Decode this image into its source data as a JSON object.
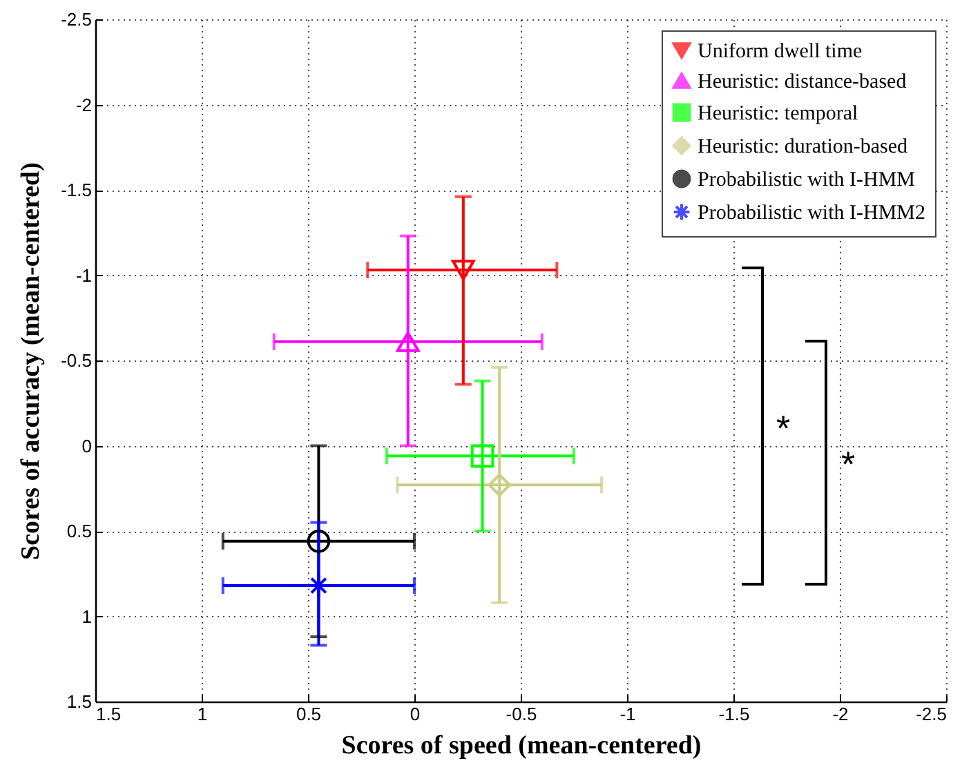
{
  "chart_data": {
    "type": "scatter",
    "xlabel": "Scores of speed (mean-centered)",
    "ylabel": "Scores of accuracy (mean-centered)",
    "xlim": [
      1.5,
      -2.5
    ],
    "xticks": [
      1.5,
      1,
      0.5,
      0,
      -0.5,
      -1,
      -1.5,
      -2,
      -2.5
    ],
    "ylim": [
      1.5,
      -2.5
    ],
    "yticks": [
      -2.5,
      -2,
      -1.5,
      -1,
      -0.5,
      0,
      0.5,
      1,
      1.5
    ],
    "grid": true,
    "legend": "top right",
    "series": [
      {
        "name": "Uniform dwell time",
        "color": "#ff0000",
        "marker": "triangle-down",
        "x": [
          -0.23
        ],
        "values": [
          -1.03
        ],
        "xerrors": [
          [
            -0.67,
            0.22
          ]
        ],
        "errors": [
          [
            -1.46,
            -0.36
          ]
        ]
      },
      {
        "name": "Heuristic: distance-based",
        "color": "#ff00ff",
        "marker": "triangle",
        "x": [
          0.03
        ],
        "values": [
          -0.61
        ],
        "xerrors": [
          [
            -0.6,
            0.66
          ]
        ],
        "errors": [
          [
            -1.23,
            0.0
          ]
        ]
      },
      {
        "name": "Heuristic: temporal",
        "color": "#00ff00",
        "marker": "square",
        "x": [
          -0.32
        ],
        "values": [
          0.06
        ],
        "xerrors": [
          [
            -0.75,
            0.13
          ]
        ],
        "errors": [
          [
            -0.38,
            0.5
          ]
        ]
      },
      {
        "name": "Heuristic: duration-based",
        "color": "#cccc88",
        "marker": "diamond",
        "x": [
          -0.4
        ],
        "values": [
          0.23
        ],
        "xerrors": [
          [
            -0.88,
            0.08
          ]
        ],
        "errors": [
          [
            -0.46,
            0.92
          ]
        ]
      },
      {
        "name": "Probabilistic with I-HMM",
        "color": "#000000",
        "marker": "circle",
        "x": [
          0.45
        ],
        "values": [
          0.56
        ],
        "xerrors": [
          [
            0.0,
            0.9
          ]
        ],
        "errors": [
          [
            0.0,
            1.12
          ]
        ]
      },
      {
        "name": "Probabilistic with I-HMM2",
        "color": "#0000ff",
        "marker": "cross",
        "x": [
          0.45
        ],
        "values": [
          0.82
        ],
        "xerrors": [
          [
            0.0,
            0.9
          ]
        ],
        "errors": [
          [
            0.45,
            1.17
          ]
        ]
      }
    ],
    "annotations": [
      "*",
      "*"
    ]
  }
}
